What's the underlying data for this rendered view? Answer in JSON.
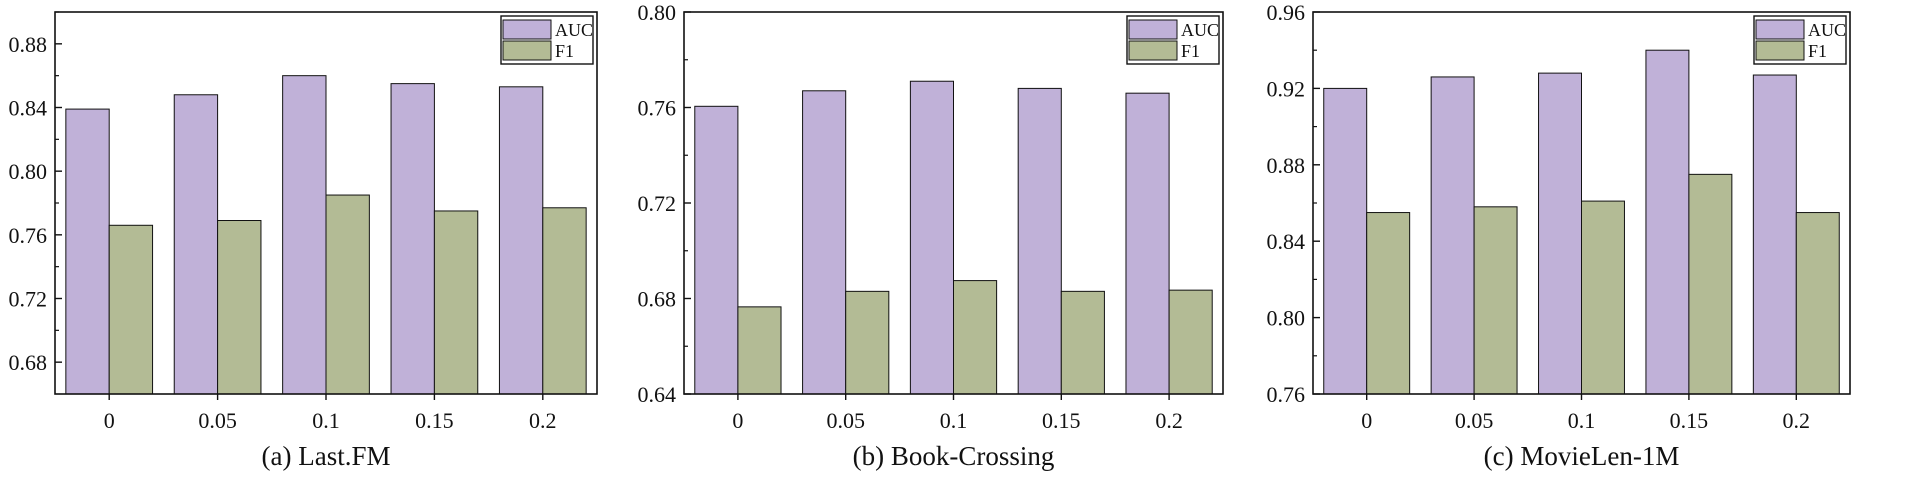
{
  "colors": {
    "auc": "#c0b1d8",
    "f1": "#b3bb95"
  },
  "chart_data": [
    {
      "type": "bar",
      "title": "(a) Last.FM",
      "categories": [
        "0",
        "0.05",
        "0.1",
        "0.15",
        "0.2"
      ],
      "series": [
        {
          "name": "AUC",
          "values": [
            0.839,
            0.848,
            0.86,
            0.855,
            0.853
          ]
        },
        {
          "name": "F1",
          "values": [
            0.766,
            0.769,
            0.785,
            0.775,
            0.777
          ]
        }
      ],
      "ylim": [
        0.66,
        0.9
      ],
      "yticks": [
        "0.68",
        "0.72",
        "0.76",
        "0.80",
        "0.84",
        "0.88"
      ],
      "legend": [
        "AUC",
        "F1"
      ],
      "legend_position": "top-right"
    },
    {
      "type": "bar",
      "title": "(b) Book-Crossing",
      "categories": [
        "0",
        "0.05",
        "0.1",
        "0.15",
        "0.2"
      ],
      "series": [
        {
          "name": "AUC",
          "values": [
            0.7605,
            0.767,
            0.771,
            0.768,
            0.766
          ]
        },
        {
          "name": "F1",
          "values": [
            0.6765,
            0.683,
            0.6875,
            0.683,
            0.6835
          ]
        }
      ],
      "ylim": [
        0.64,
        0.8
      ],
      "yticks": [
        "0.64",
        "0.68",
        "0.72",
        "0.76",
        "0.80"
      ],
      "legend": [
        "AUC",
        "F1"
      ],
      "legend_position": "top-right"
    },
    {
      "type": "bar",
      "title": "(c) MovieLen-1M",
      "categories": [
        "0",
        "0.05",
        "0.1",
        "0.15",
        "0.2"
      ],
      "series": [
        {
          "name": "AUC",
          "values": [
            0.92,
            0.926,
            0.928,
            0.94,
            0.927
          ]
        },
        {
          "name": "F1",
          "values": [
            0.855,
            0.858,
            0.861,
            0.875,
            0.855
          ]
        }
      ],
      "ylim": [
        0.76,
        0.96
      ],
      "yticks": [
        "0.76",
        "0.80",
        "0.84",
        "0.88",
        "0.92",
        "0.96"
      ],
      "legend": [
        "AUC",
        "F1"
      ],
      "legend_position": "top-right"
    }
  ]
}
